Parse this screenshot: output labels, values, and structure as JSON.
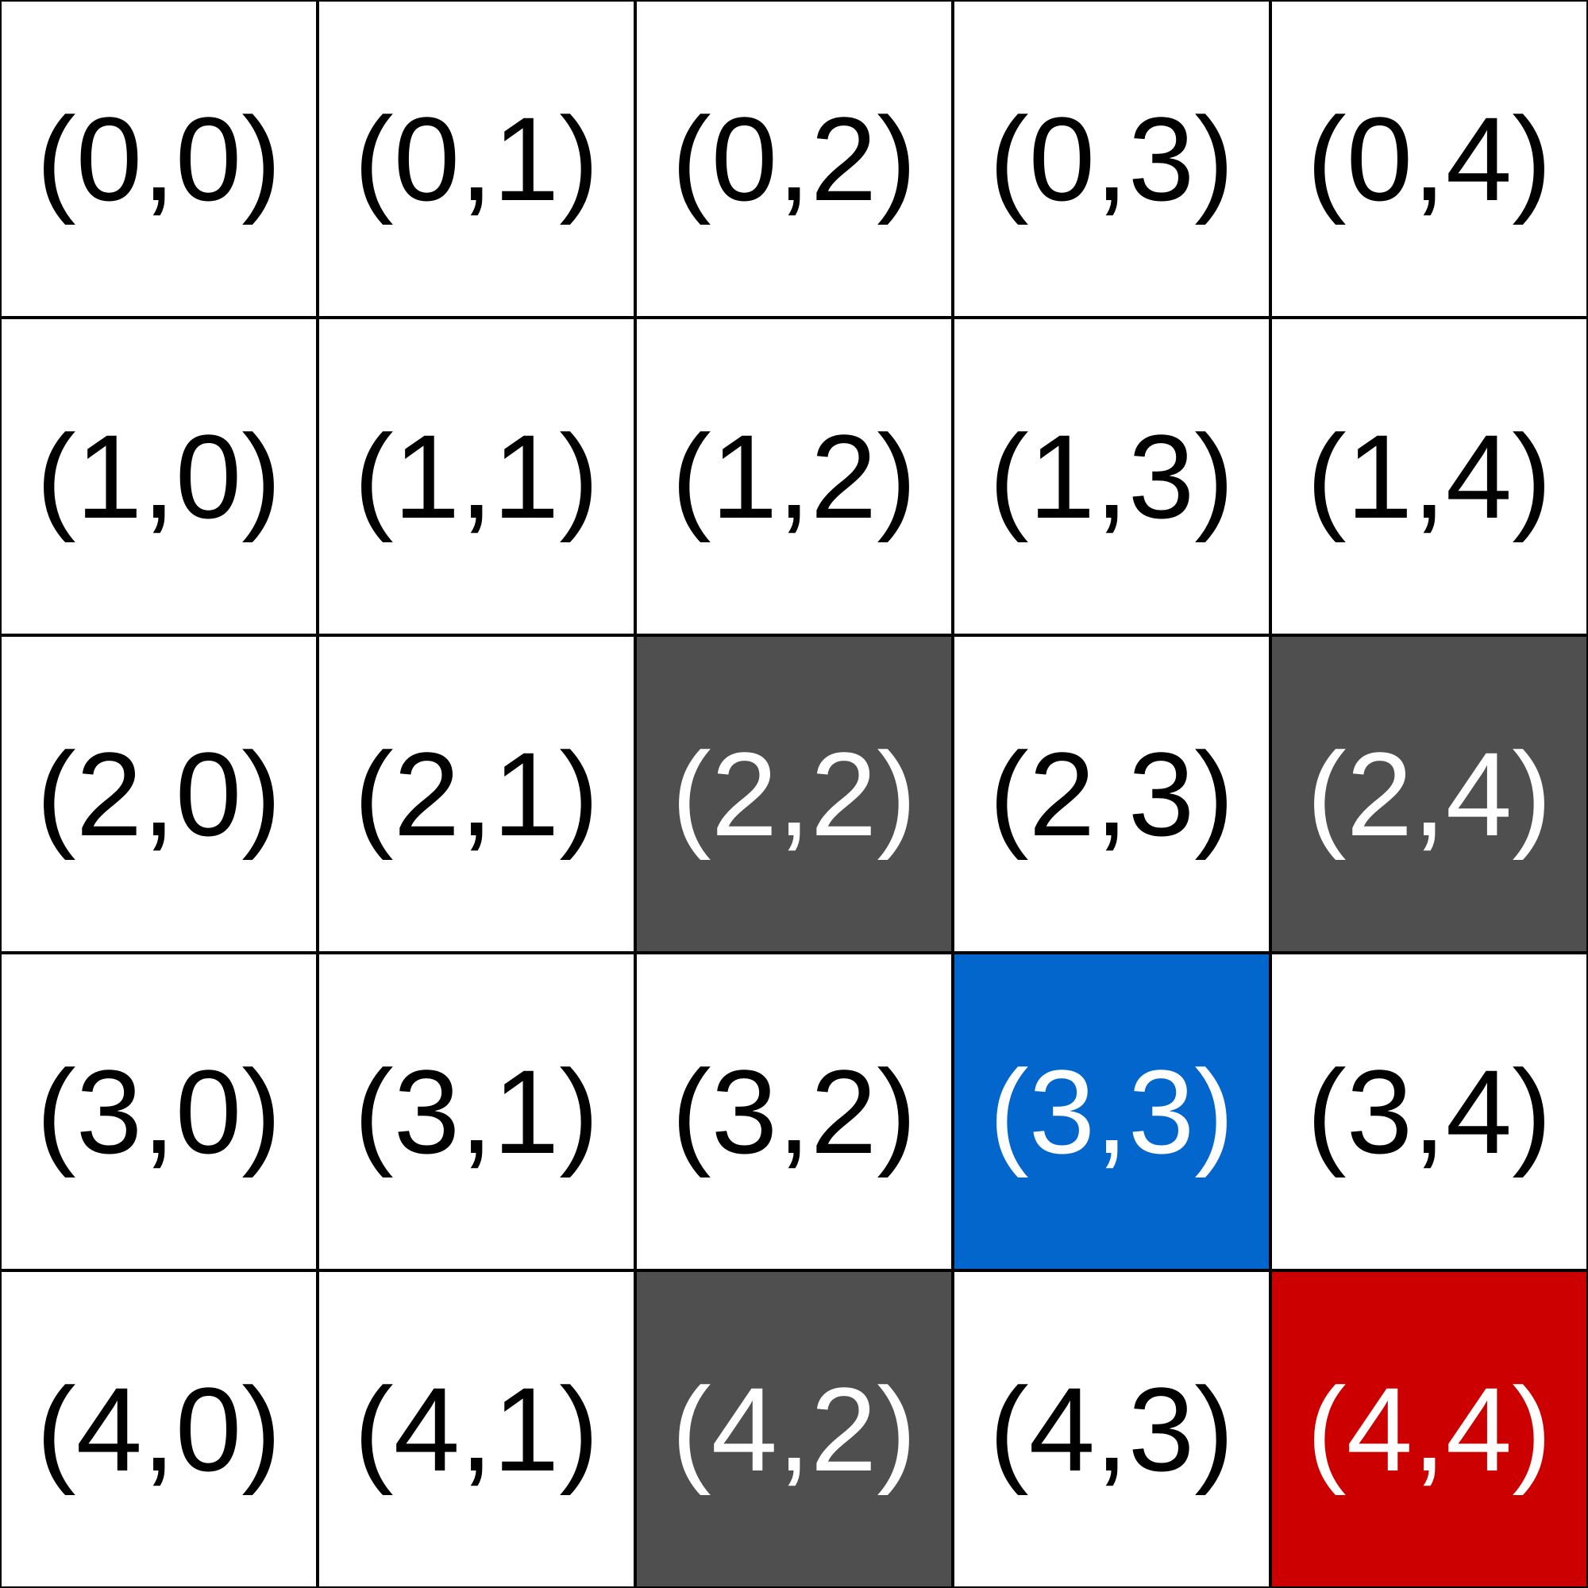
{
  "grid": {
    "rows": 5,
    "cols": 5,
    "cells": [
      {
        "label": "(0,0)",
        "state": "empty"
      },
      {
        "label": "(0,1)",
        "state": "empty"
      },
      {
        "label": "(0,2)",
        "state": "empty"
      },
      {
        "label": "(0,3)",
        "state": "empty"
      },
      {
        "label": "(0,4)",
        "state": "empty"
      },
      {
        "label": "(1,0)",
        "state": "empty"
      },
      {
        "label": "(1,1)",
        "state": "empty"
      },
      {
        "label": "(1,2)",
        "state": "empty"
      },
      {
        "label": "(1,3)",
        "state": "empty"
      },
      {
        "label": "(1,4)",
        "state": "empty"
      },
      {
        "label": "(2,0)",
        "state": "empty"
      },
      {
        "label": "(2,1)",
        "state": "empty"
      },
      {
        "label": "(2,2)",
        "state": "wall"
      },
      {
        "label": "(2,3)",
        "state": "empty"
      },
      {
        "label": "(2,4)",
        "state": "wall"
      },
      {
        "label": "(3,0)",
        "state": "empty"
      },
      {
        "label": "(3,1)",
        "state": "empty"
      },
      {
        "label": "(3,2)",
        "state": "empty"
      },
      {
        "label": "(3,3)",
        "state": "player"
      },
      {
        "label": "(3,4)",
        "state": "empty"
      },
      {
        "label": "(4,0)",
        "state": "empty"
      },
      {
        "label": "(4,1)",
        "state": "empty"
      },
      {
        "label": "(4,2)",
        "state": "wall"
      },
      {
        "label": "(4,3)",
        "state": "empty"
      },
      {
        "label": "(4,4)",
        "state": "goal"
      }
    ]
  },
  "colors": {
    "empty": {
      "bg": "#ffffff",
      "text": "#000000"
    },
    "wall": {
      "bg": "#4f4f4f",
      "text": "#ffffff"
    },
    "player": {
      "bg": "#0366cc",
      "text": "#ffffff"
    },
    "goal": {
      "bg": "#cc0000",
      "text": "#ffffff"
    },
    "border": "#000000"
  }
}
